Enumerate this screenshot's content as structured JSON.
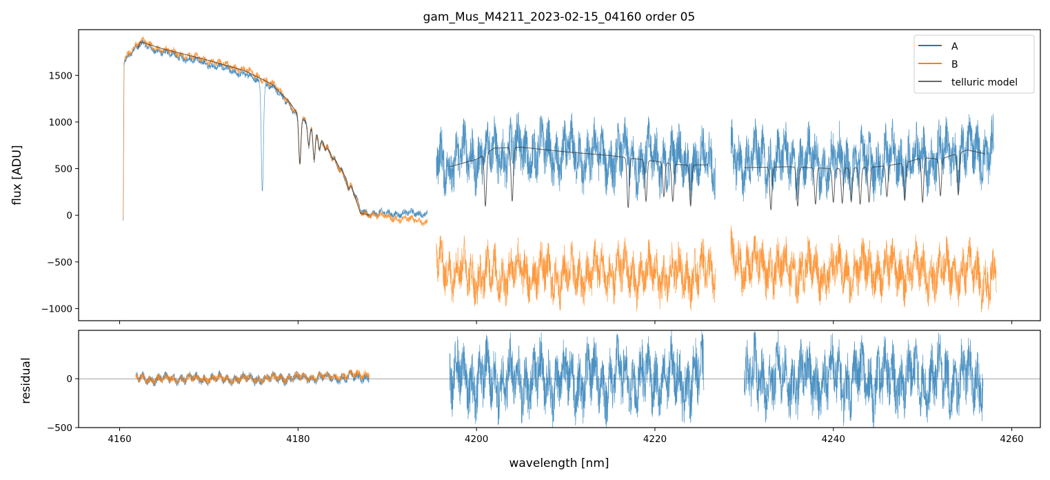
{
  "chart_data": {
    "type": "line",
    "title": "gam_Mus_M4211_2023-02-15_04160  order 05",
    "xlabel": "wavelength [nm]",
    "xlim": [
      4155.4,
      4263.2
    ],
    "xticks": [
      4160,
      4180,
      4200,
      4220,
      4240,
      4260
    ],
    "panels": [
      {
        "name": "flux",
        "ylabel": "flux [ADU]",
        "ylim": [
          -1130,
          1990
        ],
        "yticks": [
          -1000,
          -500,
          0,
          500,
          1000,
          1500
        ],
        "ytick_labels": [
          "−1000",
          "−500",
          "0",
          "500",
          "1000",
          "1500"
        ],
        "legend": {
          "placement": "top-right",
          "entries": [
            "A",
            "B",
            "telluric model"
          ]
        },
        "series": [
          {
            "name": "A",
            "color": "#1f77b4",
            "segments": [
              {
                "noise": 50,
                "points": [
                  [
                    4160.4,
                    -50
                  ],
                  [
                    4160.5,
                    1650
                  ],
                  [
                    4161.5,
                    1780
                  ],
                  [
                    4162.5,
                    1830
                  ],
                  [
                    4165,
                    1740
                  ],
                  [
                    4170,
                    1620
                  ],
                  [
                    4174,
                    1510
                  ],
                  [
                    4177,
                    1380
                  ],
                  [
                    4179,
                    1200
                  ],
                  [
                    4180,
                    1050
                  ],
                  [
                    4182,
                    900
                  ],
                  [
                    4184,
                    600
                  ],
                  [
                    4186,
                    300
                  ],
                  [
                    4187,
                    50
                  ],
                  [
                    4188,
                    20
                  ],
                  [
                    4194.5,
                    20
                  ]
                ],
                "lines": [
                  [
                    4180.2,
                    550
                  ],
                  [
                    4181.2,
                    750
                  ],
                  [
                    4181.8,
                    600
                  ],
                  [
                    4182.4,
                    700
                  ],
                  [
                    4183.1,
                    700
                  ],
                  [
                    4183.9,
                    600
                  ],
                  [
                    4184.8,
                    500
                  ],
                  [
                    4185.7,
                    280
                  ],
                  [
                    4176,
                    300
                  ]
                ]
              },
              {
                "noise": 380,
                "points": [
                  [
                    4195.5,
                    550
                  ],
                  [
                    4200,
                    650
                  ],
                  [
                    4205,
                    700
                  ],
                  [
                    4210,
                    650
                  ],
                  [
                    4215,
                    620
                  ],
                  [
                    4220,
                    600
                  ],
                  [
                    4226.8,
                    550
                  ]
                ]
              },
              {
                "noise": 380,
                "points": [
                  [
                    4228.5,
                    600
                  ],
                  [
                    4235,
                    580
                  ],
                  [
                    4240,
                    560
                  ],
                  [
                    4245,
                    580
                  ],
                  [
                    4250,
                    620
                  ],
                  [
                    4255,
                    680
                  ],
                  [
                    4258,
                    720
                  ]
                ]
              }
            ]
          },
          {
            "name": "B",
            "color": "#ff7f0e",
            "segments": [
              {
                "noise": 50,
                "points": [
                  [
                    4160.4,
                    -50
                  ],
                  [
                    4160.5,
                    1680
                  ],
                  [
                    4161.5,
                    1800
                  ],
                  [
                    4162.5,
                    1860
                  ],
                  [
                    4165,
                    1770
                  ],
                  [
                    4170,
                    1660
                  ],
                  [
                    4174,
                    1560
                  ],
                  [
                    4177,
                    1420
                  ],
                  [
                    4179,
                    1220
                  ],
                  [
                    4180,
                    1060
                  ],
                  [
                    4182,
                    900
                  ],
                  [
                    4184,
                    600
                  ],
                  [
                    4186,
                    300
                  ],
                  [
                    4187,
                    30
                  ],
                  [
                    4190,
                    -20
                  ],
                  [
                    4194.5,
                    -70
                  ]
                ],
                "lines": [
                  [
                    4180.2,
                    550
                  ],
                  [
                    4181.2,
                    750
                  ],
                  [
                    4181.8,
                    600
                  ],
                  [
                    4182.4,
                    700
                  ],
                  [
                    4183.1,
                    700
                  ],
                  [
                    4183.9,
                    600
                  ],
                  [
                    4184.8,
                    500
                  ],
                  [
                    4185.7,
                    280
                  ]
                ]
              },
              {
                "noise": 330,
                "points": [
                  [
                    4195.5,
                    -500
                  ],
                  [
                    4200,
                    -650
                  ],
                  [
                    4205,
                    -600
                  ],
                  [
                    4210,
                    -650
                  ],
                  [
                    4215,
                    -600
                  ],
                  [
                    4220,
                    -650
                  ],
                  [
                    4226.8,
                    -600
                  ]
                ]
              },
              {
                "noise": 330,
                "points": [
                  [
                    4228.5,
                    -500
                  ],
                  [
                    4235,
                    -580
                  ],
                  [
                    4240,
                    -600
                  ],
                  [
                    4245,
                    -580
                  ],
                  [
                    4250,
                    -600
                  ],
                  [
                    4255,
                    -600
                  ],
                  [
                    4258.3,
                    -700
                  ]
                ]
              }
            ]
          },
          {
            "name": "telluric model",
            "color": "#333333",
            "segments": [
              {
                "noise": 0,
                "points": [
                  [
                    4162,
                    1780
                  ],
                  [
                    4162.3,
                    1860
                  ],
                  [
                    4165,
                    1780
                  ],
                  [
                    4170,
                    1660
                  ],
                  [
                    4174,
                    1550
                  ],
                  [
                    4177,
                    1410
                  ],
                  [
                    4179,
                    1220
                  ],
                  [
                    4180,
                    1080
                  ],
                  [
                    4182,
                    900
                  ],
                  [
                    4184,
                    620
                  ],
                  [
                    4186,
                    300
                  ],
                  [
                    4187,
                    20
                  ],
                  [
                    4188,
                    0
                  ]
                ],
                "lines": [
                  [
                    4180.2,
                    550
                  ],
                  [
                    4181.2,
                    750
                  ],
                  [
                    4181.8,
                    600
                  ],
                  [
                    4182.4,
                    700
                  ],
                  [
                    4183.1,
                    700
                  ],
                  [
                    4183.9,
                    600
                  ],
                  [
                    4184.8,
                    500
                  ],
                  [
                    4185.7,
                    280
                  ]
                ]
              },
              {
                "noise": 0,
                "points": [
                  [
                    4197,
                    520
                  ],
                  [
                    4200,
                    600
                  ],
                  [
                    4202,
                    720
                  ],
                  [
                    4205,
                    730
                  ],
                  [
                    4210,
                    680
                  ],
                  [
                    4215,
                    640
                  ],
                  [
                    4220,
                    580
                  ],
                  [
                    4223,
                    540
                  ],
                  [
                    4226,
                    540
                  ]
                ],
                "lines": [
                  [
                    4201,
                    100
                  ],
                  [
                    4204,
                    150
                  ],
                  [
                    4217,
                    80
                  ],
                  [
                    4219,
                    150
                  ],
                  [
                    4221,
                    200
                  ],
                  [
                    4222,
                    150
                  ],
                  [
                    4224,
                    100
                  ]
                ]
              },
              {
                "noise": 0,
                "points": [
                  [
                    4230,
                    510
                  ],
                  [
                    4235,
                    520
                  ],
                  [
                    4240,
                    500
                  ],
                  [
                    4245,
                    520
                  ],
                  [
                    4248,
                    560
                  ],
                  [
                    4250,
                    620
                  ],
                  [
                    4252,
                    600
                  ],
                  [
                    4255,
                    700
                  ],
                  [
                    4257,
                    660
                  ]
                ],
                "lines": [
                  [
                    4233,
                    60
                  ],
                  [
                    4236,
                    100
                  ],
                  [
                    4238,
                    120
                  ],
                  [
                    4240,
                    140
                  ],
                  [
                    4241,
                    130
                  ],
                  [
                    4242,
                    150
                  ],
                  [
                    4243,
                    120
                  ],
                  [
                    4244,
                    140
                  ],
                  [
                    4246,
                    200
                  ],
                  [
                    4248,
                    160
                  ],
                  [
                    4250,
                    140
                  ],
                  [
                    4252,
                    210
                  ],
                  [
                    4254,
                    220
                  ]
                ]
              }
            ]
          }
        ]
      },
      {
        "name": "residual",
        "ylabel": "residual",
        "ylim": [
          -500,
          495
        ],
        "yticks": [
          -500,
          0
        ],
        "ytick_labels": [
          "−500",
          "0"
        ],
        "series": [
          {
            "name": "A",
            "color": "#1f77b4",
            "segments": [
              {
                "noise": 70,
                "points": [
                  [
                    4161.8,
                    0
                  ],
                  [
                    4175,
                    0
                  ],
                  [
                    4188,
                    20
                  ]
                ]
              },
              {
                "noise": 420,
                "points": [
                  [
                    4197,
                    0
                  ],
                  [
                    4205,
                    0
                  ],
                  [
                    4215,
                    0
                  ],
                  [
                    4225.5,
                    0
                  ]
                ]
              },
              {
                "noise": 420,
                "points": [
                  [
                    4230,
                    0
                  ],
                  [
                    4240,
                    0
                  ],
                  [
                    4250,
                    0
                  ],
                  [
                    4256.8,
                    0
                  ]
                ]
              }
            ]
          },
          {
            "name": "B",
            "color": "#ff7f0e",
            "segments": [
              {
                "noise": 60,
                "points": [
                  [
                    4161.8,
                    0
                  ],
                  [
                    4175,
                    0
                  ],
                  [
                    4186,
                    30
                  ],
                  [
                    4188,
                    60
                  ]
                ]
              }
            ]
          }
        ]
      }
    ]
  }
}
